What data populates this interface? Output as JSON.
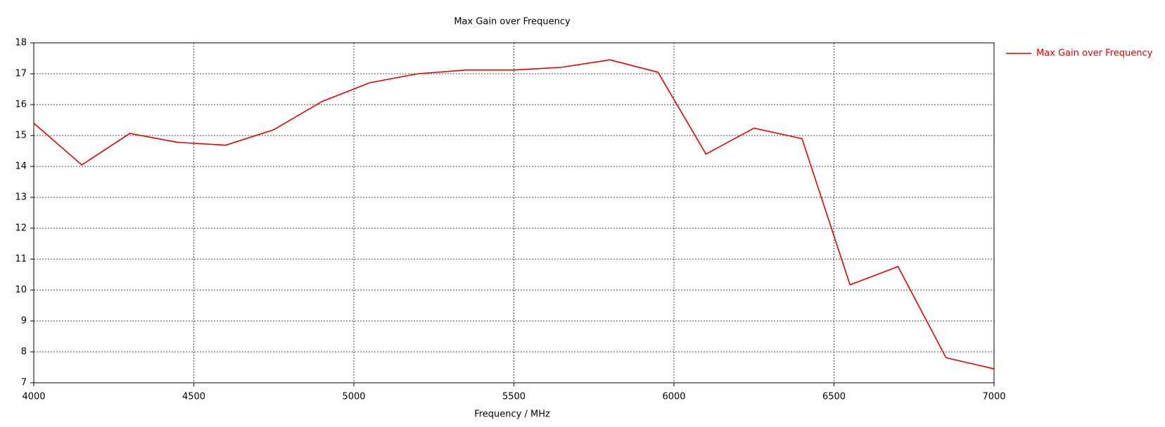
{
  "chart_data": {
    "type": "line",
    "title": "Max Gain over Frequency",
    "x_label": "Frequency / MHz",
    "x": [
      4000,
      4150,
      4300,
      4450,
      4600,
      4750,
      4900,
      5050,
      5200,
      5350,
      5500,
      5650,
      5800,
      5950,
      6100,
      6250,
      6400,
      6550,
      6700,
      6850,
      7000
    ],
    "series": [
      {
        "name": "Max Gain over Frequency",
        "color": "#e00000",
        "values": [
          15.4,
          14.05,
          15.07,
          14.78,
          14.69,
          15.19,
          16.1,
          16.71,
          17.0,
          17.12,
          17.12,
          17.21,
          17.45,
          17.05,
          14.4,
          15.24,
          14.9,
          10.17,
          10.76,
          7.81,
          7.45
        ]
      }
    ],
    "xlim": [
      4000,
      7000
    ],
    "xticks": [
      4000,
      4500,
      5000,
      5500,
      6000,
      6500,
      7000
    ],
    "ylim": [
      7,
      18
    ],
    "yticks": [
      7,
      8,
      9,
      10,
      11,
      12,
      13,
      14,
      15,
      16,
      17,
      18
    ],
    "grid": true,
    "legend": "right"
  }
}
